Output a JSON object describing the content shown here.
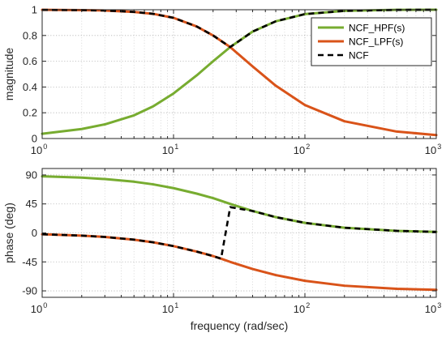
{
  "chart_data": [
    {
      "type": "line",
      "panel": "magnitude",
      "xscale": "log",
      "xlim": [
        1,
        1000
      ],
      "ylim": [
        0,
        1
      ],
      "grid": true,
      "ylabel": "magnitude",
      "xlabel": "",
      "yticks": [
        0,
        0.2,
        0.4,
        0.6,
        0.8,
        1
      ],
      "ytick_labels": [
        "0",
        "0.2",
        "0.4",
        "0.6",
        "0.8",
        "1"
      ],
      "xticks": [
        1,
        10,
        100,
        1000
      ],
      "legend": {
        "placement": "top-right",
        "entries": [
          {
            "label": "NCF_HPF(s)",
            "color": "#77AC30",
            "style": "solid"
          },
          {
            "label": "NCF_LPF(s)",
            "color": "#D95319",
            "style": "solid"
          },
          {
            "label": "NCF",
            "color": "#000000",
            "style": "dashed"
          }
        ]
      },
      "series": [
        {
          "name": "NCF_HPF(s)",
          "color": "#77AC30",
          "style": "solid",
          "x": [
            1,
            2,
            3,
            5,
            7,
            10,
            15,
            20,
            27,
            40,
            60,
            100,
            200,
            500,
            1000
          ],
          "y": [
            0.037,
            0.074,
            0.11,
            0.18,
            0.25,
            0.35,
            0.49,
            0.6,
            0.71,
            0.83,
            0.91,
            0.966,
            0.991,
            0.999,
            1.0
          ]
        },
        {
          "name": "NCF_LPF(s)",
          "color": "#D95319",
          "style": "solid",
          "x": [
            1,
            2,
            3,
            5,
            7,
            10,
            15,
            20,
            27,
            40,
            60,
            100,
            200,
            500,
            1000
          ],
          "y": [
            0.999,
            0.997,
            0.994,
            0.983,
            0.968,
            0.937,
            0.87,
            0.8,
            0.71,
            0.56,
            0.41,
            0.26,
            0.134,
            0.054,
            0.027
          ]
        },
        {
          "name": "NCF",
          "color": "#000000",
          "style": "dashed",
          "x": [
            1,
            2,
            3,
            5,
            7,
            10,
            15,
            20,
            27,
            40,
            60,
            100,
            200,
            500,
            1000
          ],
          "y": [
            0.999,
            0.997,
            0.994,
            0.983,
            0.968,
            0.937,
            0.87,
            0.8,
            0.71,
            0.83,
            0.91,
            0.966,
            0.991,
            0.999,
            1.0
          ]
        }
      ]
    },
    {
      "type": "line",
      "panel": "phase",
      "xscale": "log",
      "xlim": [
        1,
        1000
      ],
      "ylim": [
        -100,
        100
      ],
      "grid": true,
      "ylabel": "phase (deg)",
      "xlabel": "frequency (rad/sec)",
      "yticks": [
        -90,
        -45,
        0,
        45,
        90
      ],
      "ytick_labels": [
        "-90",
        "-45",
        "0",
        "45",
        "90"
      ],
      "xticks": [
        1,
        10,
        100,
        1000
      ],
      "series": [
        {
          "name": "NCF_HPF(s)",
          "color": "#77AC30",
          "style": "solid",
          "x": [
            1,
            2,
            3,
            5,
            7,
            10,
            15,
            20,
            27,
            40,
            60,
            100,
            200,
            500,
            1000
          ],
          "y": [
            87.9,
            85.8,
            83.6,
            79.5,
            75.4,
            69.5,
            61,
            54,
            45,
            34,
            24.5,
            15.6,
            8.0,
            3.2,
            1.6
          ]
        },
        {
          "name": "NCF_LPF(s)",
          "color": "#D95319",
          "style": "solid",
          "x": [
            1,
            2,
            3,
            5,
            7,
            10,
            15,
            20,
            23,
            27,
            40,
            60,
            100,
            200,
            500,
            1000
          ],
          "y": [
            -2.1,
            -4.2,
            -6.3,
            -10.5,
            -14.6,
            -20.5,
            -29,
            -36,
            -40,
            -45,
            -56,
            -65.5,
            -74.4,
            -82,
            -86.8,
            -88.4
          ]
        },
        {
          "name": "NCF",
          "color": "#000000",
          "style": "dashed",
          "x": [
            1,
            2,
            3,
            5,
            7,
            10,
            15,
            20,
            23,
            27,
            40,
            60,
            100,
            200,
            500,
            1000
          ],
          "y": [
            -2.1,
            -4.2,
            -6.3,
            -10.5,
            -14.6,
            -20.5,
            -29,
            -36,
            -40,
            40,
            34,
            24.5,
            15.6,
            8.0,
            3.2,
            1.6
          ]
        }
      ]
    }
  ]
}
